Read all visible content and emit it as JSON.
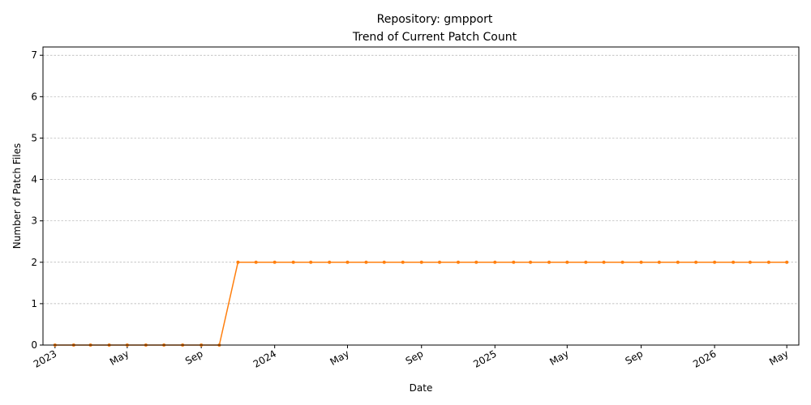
{
  "chart_data": {
    "type": "line",
    "title": "Repository: gmpport",
    "subtitle": "Trend of Current Patch Count",
    "xlabel": "Date",
    "ylabel": "Number of Patch Files",
    "ylim": [
      0,
      7.2
    ],
    "xlim": [
      "2022-12-12",
      "2026-05-21"
    ],
    "yticks": [
      0,
      1,
      2,
      3,
      4,
      5,
      6,
      7
    ],
    "xticks": [
      {
        "date": "2023-01-01",
        "label": "2023"
      },
      {
        "date": "2023-05-01",
        "label": "May"
      },
      {
        "date": "2023-09-01",
        "label": "Sep"
      },
      {
        "date": "2024-01-01",
        "label": "2024"
      },
      {
        "date": "2024-05-01",
        "label": "May"
      },
      {
        "date": "2024-09-01",
        "label": "Sep"
      },
      {
        "date": "2025-01-01",
        "label": "2025"
      },
      {
        "date": "2025-05-01",
        "label": "May"
      },
      {
        "date": "2025-09-01",
        "label": "Sep"
      },
      {
        "date": "2026-01-01",
        "label": "2026"
      },
      {
        "date": "2026-05-01",
        "label": "May"
      }
    ],
    "grid": {
      "y": true,
      "x": false
    },
    "series": [
      {
        "color": "#ff7f0e",
        "x": [
          "2023-01-01",
          "2023-02-01",
          "2023-03-01",
          "2023-04-01",
          "2023-05-01",
          "2023-06-01",
          "2023-07-01",
          "2023-08-01",
          "2023-09-01",
          "2023-10-01",
          "2023-11-01",
          "2023-12-01",
          "2024-01-01",
          "2024-02-01",
          "2024-03-01",
          "2024-04-01",
          "2024-05-01",
          "2024-06-01",
          "2024-07-01",
          "2024-08-01",
          "2024-09-01",
          "2024-10-01",
          "2024-11-01",
          "2024-12-01",
          "2025-01-01",
          "2025-02-01",
          "2025-03-01",
          "2025-04-01",
          "2025-05-01",
          "2025-06-01",
          "2025-07-01",
          "2025-08-01",
          "2025-09-01",
          "2025-10-01",
          "2025-11-01",
          "2025-12-01",
          "2026-01-01",
          "2026-02-01",
          "2026-03-01",
          "2026-04-01",
          "2026-05-01"
        ],
        "y": [
          0,
          0,
          0,
          0,
          0,
          0,
          0,
          0,
          0,
          0,
          2,
          2,
          2,
          2,
          2,
          2,
          2,
          2,
          2,
          2,
          2,
          2,
          2,
          2,
          2,
          2,
          2,
          2,
          2,
          2,
          2,
          2,
          2,
          2,
          2,
          2,
          2,
          2,
          2,
          2,
          2
        ]
      }
    ]
  }
}
